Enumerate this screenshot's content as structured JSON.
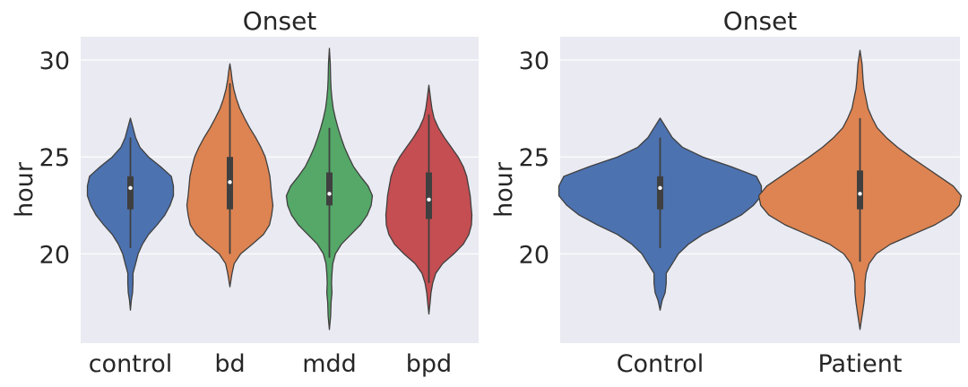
{
  "chart_data": [
    {
      "type": "violin",
      "title": "Onset",
      "xlabel": "",
      "ylabel": "hour",
      "ylim": [
        15.4,
        31.2
      ],
      "yticks": [
        20,
        25,
        30
      ],
      "grid": true,
      "categories": [
        "control",
        "bd",
        "mdd",
        "bpd"
      ],
      "colors": [
        "#4c72b0",
        "#dd8452",
        "#55a868",
        "#c44e52"
      ],
      "violins": [
        {
          "category": "control",
          "min": 17.1,
          "max": 27.0,
          "q1": 22.3,
          "median": 23.4,
          "q3": 24.0,
          "whisker_low": 20.3,
          "whisker_high": 26.0,
          "profile": [
            [
              17.1,
              0.0
            ],
            [
              17.6,
              0.02
            ],
            [
              18.0,
              0.05
            ],
            [
              18.5,
              0.06
            ],
            [
              19.0,
              0.06
            ],
            [
              19.5,
              0.12
            ],
            [
              20.0,
              0.18
            ],
            [
              20.5,
              0.28
            ],
            [
              21.0,
              0.42
            ],
            [
              21.5,
              0.62
            ],
            [
              22.0,
              0.8
            ],
            [
              22.5,
              0.92
            ],
            [
              23.0,
              1.0
            ],
            [
              23.5,
              1.0
            ],
            [
              24.0,
              0.95
            ],
            [
              24.5,
              0.7
            ],
            [
              25.0,
              0.42
            ],
            [
              25.5,
              0.22
            ],
            [
              26.0,
              0.12
            ],
            [
              26.5,
              0.06
            ],
            [
              27.0,
              0.0
            ]
          ]
        },
        {
          "category": "bd",
          "min": 18.3,
          "max": 29.8,
          "q1": 22.3,
          "median": 23.7,
          "q3": 25.0,
          "whisker_low": 20.0,
          "whisker_high": 28.8,
          "profile": [
            [
              18.3,
              0.0
            ],
            [
              19.0,
              0.05
            ],
            [
              19.5,
              0.1
            ],
            [
              20.0,
              0.25
            ],
            [
              20.5,
              0.52
            ],
            [
              21.0,
              0.78
            ],
            [
              21.5,
              0.92
            ],
            [
              22.0,
              0.97
            ],
            [
              22.5,
              1.0
            ],
            [
              23.0,
              0.97
            ],
            [
              23.5,
              0.95
            ],
            [
              24.0,
              0.93
            ],
            [
              24.5,
              0.88
            ],
            [
              25.0,
              0.82
            ],
            [
              25.5,
              0.72
            ],
            [
              26.0,
              0.6
            ],
            [
              26.5,
              0.46
            ],
            [
              27.0,
              0.34
            ],
            [
              27.5,
              0.23
            ],
            [
              28.0,
              0.15
            ],
            [
              28.5,
              0.09
            ],
            [
              29.0,
              0.05
            ],
            [
              29.4,
              0.03
            ],
            [
              29.8,
              0.0
            ]
          ]
        },
        {
          "category": "mdd",
          "min": 16.1,
          "max": 30.6,
          "q1": 22.5,
          "median": 23.1,
          "q3": 24.2,
          "whisker_low": 19.8,
          "whisker_high": 26.5,
          "profile": [
            [
              16.1,
              0.0
            ],
            [
              16.8,
              0.03
            ],
            [
              17.5,
              0.04
            ],
            [
              18.0,
              0.06
            ],
            [
              18.5,
              0.05
            ],
            [
              19.0,
              0.06
            ],
            [
              19.5,
              0.08
            ],
            [
              20.0,
              0.14
            ],
            [
              20.5,
              0.28
            ],
            [
              21.0,
              0.5
            ],
            [
              21.5,
              0.72
            ],
            [
              22.0,
              0.88
            ],
            [
              22.5,
              0.97
            ],
            [
              23.0,
              1.0
            ],
            [
              23.5,
              0.9
            ],
            [
              24.0,
              0.72
            ],
            [
              24.5,
              0.56
            ],
            [
              25.0,
              0.45
            ],
            [
              25.5,
              0.35
            ],
            [
              26.0,
              0.27
            ],
            [
              26.5,
              0.2
            ],
            [
              27.0,
              0.14
            ],
            [
              27.5,
              0.09
            ],
            [
              28.0,
              0.06
            ],
            [
              28.5,
              0.04
            ],
            [
              29.0,
              0.03
            ],
            [
              29.8,
              0.02
            ],
            [
              30.6,
              0.0
            ]
          ]
        },
        {
          "category": "bpd",
          "min": 16.9,
          "max": 28.7,
          "q1": 21.8,
          "median": 22.8,
          "q3": 24.2,
          "whisker_low": 18.5,
          "whisker_high": 27.2,
          "profile": [
            [
              16.9,
              0.0
            ],
            [
              17.5,
              0.03
            ],
            [
              18.0,
              0.05
            ],
            [
              18.5,
              0.09
            ],
            [
              19.0,
              0.16
            ],
            [
              19.5,
              0.32
            ],
            [
              20.0,
              0.58
            ],
            [
              20.5,
              0.8
            ],
            [
              21.0,
              0.93
            ],
            [
              21.5,
              0.99
            ],
            [
              22.0,
              1.0
            ],
            [
              22.5,
              0.98
            ],
            [
              23.0,
              0.96
            ],
            [
              23.5,
              0.92
            ],
            [
              24.0,
              0.88
            ],
            [
              24.5,
              0.8
            ],
            [
              25.0,
              0.68
            ],
            [
              25.5,
              0.52
            ],
            [
              26.0,
              0.36
            ],
            [
              26.5,
              0.22
            ],
            [
              27.0,
              0.12
            ],
            [
              27.5,
              0.07
            ],
            [
              28.0,
              0.04
            ],
            [
              28.7,
              0.0
            ]
          ]
        }
      ]
    },
    {
      "type": "violin",
      "title": "Onset",
      "xlabel": "",
      "ylabel": "hour",
      "ylim": [
        15.4,
        31.2
      ],
      "yticks": [
        20,
        25,
        30
      ],
      "grid": true,
      "categories": [
        "Control",
        "Patient"
      ],
      "colors": [
        "#4c72b0",
        "#dd8452"
      ],
      "violins": [
        {
          "category": "Control",
          "min": 17.1,
          "max": 27.0,
          "q1": 22.3,
          "median": 23.4,
          "q3": 24.0,
          "whisker_low": 20.3,
          "whisker_high": 26.0,
          "profile": [
            [
              17.1,
              0.0
            ],
            [
              17.6,
              0.02
            ],
            [
              18.0,
              0.05
            ],
            [
              18.5,
              0.06
            ],
            [
              19.0,
              0.06
            ],
            [
              19.5,
              0.12
            ],
            [
              20.0,
              0.18
            ],
            [
              20.5,
              0.28
            ],
            [
              21.0,
              0.42
            ],
            [
              21.5,
              0.62
            ],
            [
              22.0,
              0.8
            ],
            [
              22.5,
              0.92
            ],
            [
              23.0,
              1.0
            ],
            [
              23.5,
              1.0
            ],
            [
              24.0,
              0.95
            ],
            [
              24.5,
              0.7
            ],
            [
              25.0,
              0.42
            ],
            [
              25.5,
              0.22
            ],
            [
              26.0,
              0.12
            ],
            [
              26.5,
              0.06
            ],
            [
              27.0,
              0.0
            ]
          ]
        },
        {
          "category": "Patient",
          "min": 16.1,
          "max": 30.5,
          "q1": 22.3,
          "median": 23.1,
          "q3": 24.3,
          "whisker_low": 19.6,
          "whisker_high": 27.0,
          "profile": [
            [
              16.1,
              0.0
            ],
            [
              16.8,
              0.02
            ],
            [
              17.5,
              0.04
            ],
            [
              18.0,
              0.05
            ],
            [
              18.5,
              0.05
            ],
            [
              19.0,
              0.06
            ],
            [
              19.5,
              0.09
            ],
            [
              20.0,
              0.16
            ],
            [
              20.5,
              0.3
            ],
            [
              21.0,
              0.52
            ],
            [
              21.5,
              0.74
            ],
            [
              22.0,
              0.9
            ],
            [
              22.5,
              0.98
            ],
            [
              23.0,
              1.0
            ],
            [
              23.5,
              0.92
            ],
            [
              24.0,
              0.78
            ],
            [
              24.5,
              0.64
            ],
            [
              25.0,
              0.5
            ],
            [
              25.5,
              0.37
            ],
            [
              26.0,
              0.26
            ],
            [
              26.5,
              0.17
            ],
            [
              27.0,
              0.12
            ],
            [
              27.5,
              0.08
            ],
            [
              28.0,
              0.06
            ],
            [
              28.5,
              0.04
            ],
            [
              29.0,
              0.03
            ],
            [
              29.8,
              0.02
            ],
            [
              30.5,
              0.0
            ]
          ]
        }
      ]
    }
  ]
}
